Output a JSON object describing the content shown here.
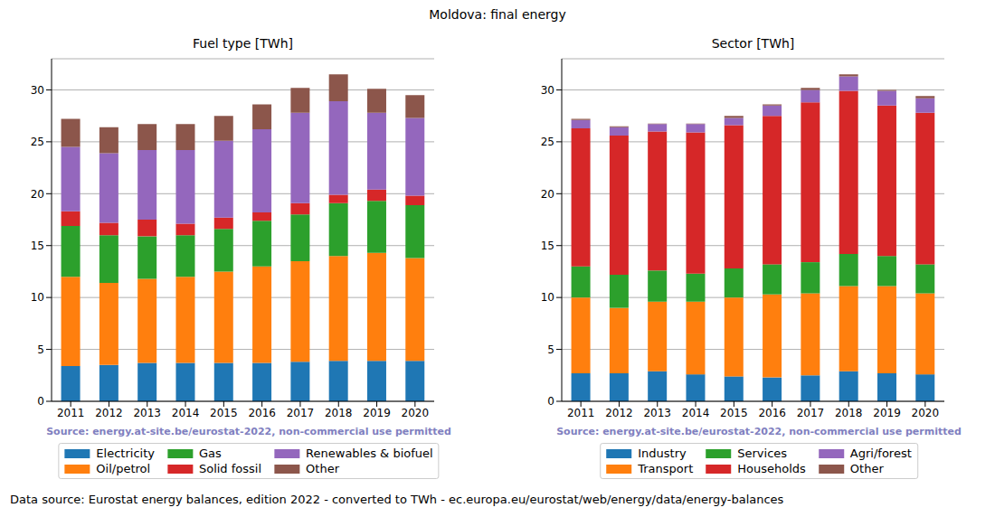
{
  "title": "Moldova: final energy",
  "footnote": "Data source: Eurostat energy balances, edition 2022 - converted to TWh - ec.europa.eu/eurostat/web/energy/data/energy-balances",
  "chart_data": [
    {
      "type": "bar",
      "title": "Fuel type [TWh]",
      "annotation": "Source: energy.at-site.be/eurostat-2022, non-commercial use permitted",
      "categories": [
        "2011",
        "2012",
        "2013",
        "2014",
        "2015",
        "2016",
        "2017",
        "2018",
        "2019",
        "2020"
      ],
      "series": [
        {
          "name": "Electricity",
          "color": "#1f77b4",
          "values": [
            3.4,
            3.5,
            3.7,
            3.7,
            3.7,
            3.7,
            3.8,
            3.9,
            3.9,
            3.9
          ]
        },
        {
          "name": "Oil/petrol",
          "color": "#ff7f0e",
          "values": [
            8.6,
            7.9,
            8.1,
            8.3,
            8.8,
            9.3,
            9.7,
            10.1,
            10.4,
            9.9
          ]
        },
        {
          "name": "Gas",
          "color": "#2ca02c",
          "values": [
            4.9,
            4.6,
            4.1,
            4.0,
            4.1,
            4.4,
            4.5,
            5.1,
            5.0,
            5.1
          ]
        },
        {
          "name": "Solid fossil",
          "color": "#d62728",
          "values": [
            1.4,
            1.2,
            1.6,
            1.1,
            1.1,
            0.8,
            1.1,
            0.8,
            1.1,
            0.9
          ]
        },
        {
          "name": "Renewables & biofuel",
          "color": "#9467bd",
          "values": [
            6.2,
            6.7,
            6.7,
            7.1,
            7.4,
            8.0,
            8.7,
            9.0,
            7.4,
            7.5
          ]
        },
        {
          "name": "Other",
          "color": "#8c564b",
          "values": [
            2.7,
            2.5,
            2.5,
            2.5,
            2.4,
            2.4,
            2.4,
            2.6,
            2.3,
            2.2
          ]
        }
      ],
      "ylim": [
        0,
        33
      ],
      "yticks": [
        0,
        5,
        10,
        15,
        20,
        25,
        30
      ],
      "grid": true,
      "stacked": true
    },
    {
      "type": "bar",
      "title": "Sector [TWh]",
      "annotation": "Source: energy.at-site.be/eurostat-2022, non-commercial use permitted",
      "categories": [
        "2011",
        "2012",
        "2013",
        "2014",
        "2015",
        "2016",
        "2017",
        "2018",
        "2019",
        "2020"
      ],
      "series": [
        {
          "name": "Industry",
          "color": "#1f77b4",
          "values": [
            2.7,
            2.7,
            2.9,
            2.6,
            2.4,
            2.3,
            2.5,
            2.9,
            2.7,
            2.6
          ]
        },
        {
          "name": "Transport",
          "color": "#ff7f0e",
          "values": [
            7.3,
            6.3,
            6.7,
            7.0,
            7.6,
            8.0,
            7.9,
            8.2,
            8.4,
            7.8
          ]
        },
        {
          "name": "Services",
          "color": "#2ca02c",
          "values": [
            3.0,
            3.2,
            3.0,
            2.7,
            2.8,
            2.9,
            3.0,
            3.1,
            2.9,
            2.8
          ]
        },
        {
          "name": "Households",
          "color": "#d62728",
          "values": [
            13.3,
            13.4,
            13.4,
            13.6,
            13.8,
            14.3,
            15.4,
            15.7,
            14.5,
            14.6
          ]
        },
        {
          "name": "Agri/forest",
          "color": "#9467bd",
          "values": [
            0.8,
            0.8,
            0.7,
            0.8,
            0.7,
            1.0,
            1.2,
            1.4,
            1.4,
            1.4
          ]
        },
        {
          "name": "Other",
          "color": "#8c564b",
          "values": [
            0.1,
            0.1,
            0.05,
            0.05,
            0.2,
            0.1,
            0.2,
            0.2,
            0.1,
            0.2
          ]
        }
      ],
      "ylim": [
        0,
        33
      ],
      "yticks": [
        0,
        5,
        10,
        15,
        20,
        25,
        30
      ],
      "grid": true,
      "stacked": true
    }
  ]
}
